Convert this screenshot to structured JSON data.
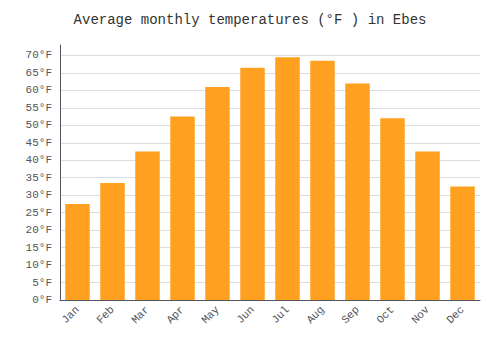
{
  "chart_data": {
    "type": "bar",
    "title": "Average monthly temperatures (°F ) in Ebes",
    "categories": [
      "Jan",
      "Feb",
      "Mar",
      "Apr",
      "May",
      "Jun",
      "Jul",
      "Aug",
      "Sep",
      "Oct",
      "Nov",
      "Dec"
    ],
    "values": [
      27.5,
      33.5,
      42.5,
      52.5,
      61.0,
      66.5,
      69.5,
      68.5,
      62.0,
      52.0,
      42.5,
      32.5
    ],
    "color": "#FFA020",
    "ylim": [
      0,
      73
    ],
    "yticks": [
      {
        "value": 0,
        "label": "0°F"
      },
      {
        "value": 5,
        "label": "5°F"
      },
      {
        "value": 10,
        "label": "10°F"
      },
      {
        "value": 15,
        "label": "15°F"
      },
      {
        "value": 20,
        "label": "20°F"
      },
      {
        "value": 25,
        "label": "25°F"
      },
      {
        "value": 30,
        "label": "30°F"
      },
      {
        "value": 35,
        "label": "35°F"
      },
      {
        "value": 40,
        "label": "40°F"
      },
      {
        "value": 45,
        "label": "45°F"
      },
      {
        "value": 50,
        "label": "50°F"
      },
      {
        "value": 55,
        "label": "55°F"
      },
      {
        "value": 60,
        "label": "60°F"
      },
      {
        "value": 65,
        "label": "65°F"
      },
      {
        "value": 70,
        "label": "70°F"
      }
    ],
    "grid": true
  }
}
